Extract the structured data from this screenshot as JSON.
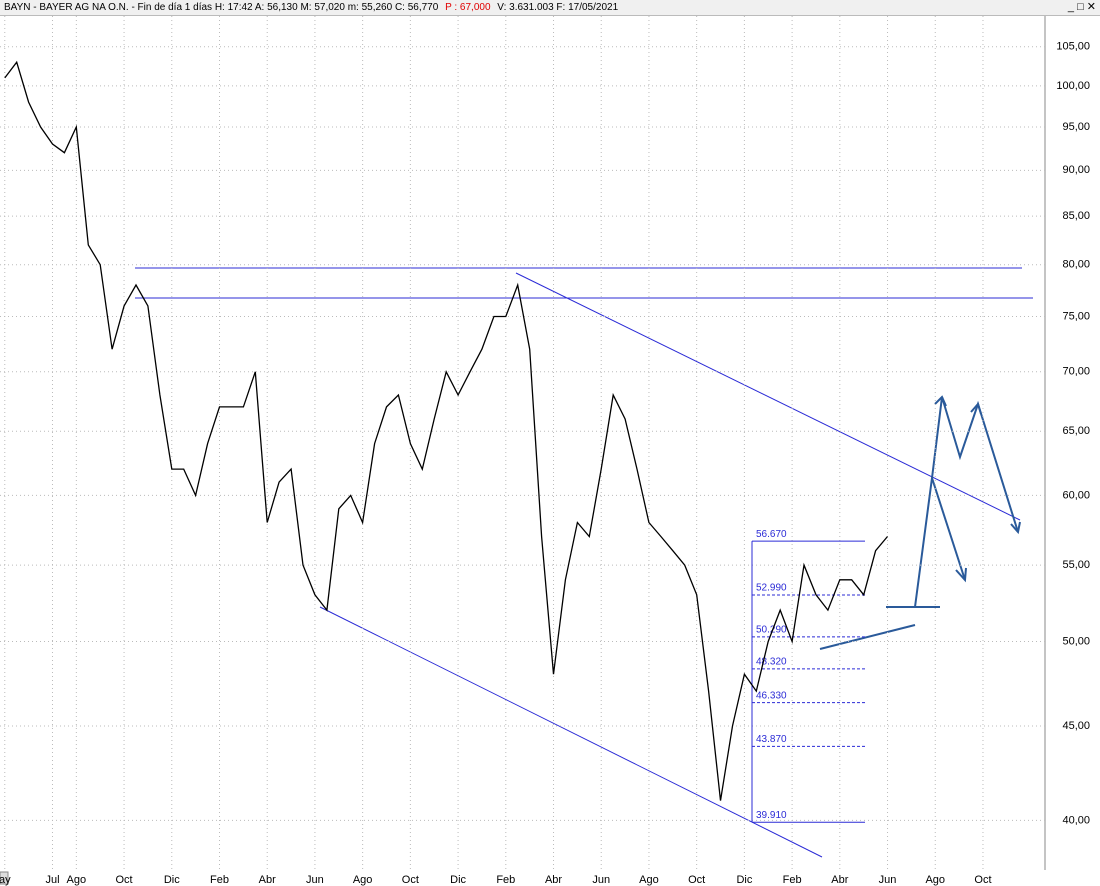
{
  "chart_data": {
    "type": "line",
    "title": [
      "BAYN - BAYER AG NA O.N. - Fin de día 1 días  H: 17:42  A: 56,130  M: 57,020  m: 55,260  C: 56,770",
      "P : 67,000",
      "V: 3.631.003  F: 17/05/2021"
    ],
    "log_scale": true,
    "grid": true,
    "ylim": [
      37.6,
      110.2
    ],
    "yticks": [
      {
        "value": 40,
        "label": "40,00"
      },
      {
        "value": 45,
        "label": "45,00"
      },
      {
        "value": 50,
        "label": "50,00"
      },
      {
        "value": 55,
        "label": "55,00"
      },
      {
        "value": 60,
        "label": "60,00"
      },
      {
        "value": 65,
        "label": "65,00"
      },
      {
        "value": 70,
        "label": "70,00"
      },
      {
        "value": 75,
        "label": "75,00"
      },
      {
        "value": 80,
        "label": "80,00"
      },
      {
        "value": 85,
        "label": "85,00"
      },
      {
        "value": 90,
        "label": "90,00"
      },
      {
        "value": 95,
        "label": "95,00"
      },
      {
        "value": 100,
        "label": "100,00"
      },
      {
        "value": 105,
        "label": "105,00"
      }
    ],
    "xlim": [
      -0.2,
      43.6
    ],
    "xticks": [
      {
        "value": 0,
        "label": "ay"
      },
      {
        "value": 2,
        "label": "Jul"
      },
      {
        "value": 3,
        "label": "Ago"
      },
      {
        "value": 5,
        "label": "Oct"
      },
      {
        "value": 7,
        "label": "Dic"
      },
      {
        "value": 9,
        "label": "Feb"
      },
      {
        "value": 11,
        "label": "Abr"
      },
      {
        "value": 13,
        "label": "Jun"
      },
      {
        "value": 15,
        "label": "Ago"
      },
      {
        "value": 17,
        "label": "Oct"
      },
      {
        "value": 19,
        "label": "Dic"
      },
      {
        "value": 21,
        "label": "Feb"
      },
      {
        "value": 23,
        "label": "Abr"
      },
      {
        "value": 25,
        "label": "Jun"
      },
      {
        "value": 27,
        "label": "Ago"
      },
      {
        "value": 29,
        "label": "Oct"
      },
      {
        "value": 31,
        "label": "Dic"
      },
      {
        "value": 33,
        "label": "Feb"
      },
      {
        "value": 35,
        "label": "Abr"
      },
      {
        "value": 37,
        "label": "Jun"
      },
      {
        "value": 39,
        "label": "Ago"
      },
      {
        "value": 41,
        "label": "Oct"
      }
    ],
    "series": [
      {
        "color": "#000000",
        "values": [
          101,
          103,
          98,
          95,
          93,
          92,
          95,
          82,
          80,
          72,
          76,
          78,
          76,
          68,
          62,
          62,
          60,
          64,
          67,
          67,
          67,
          70,
          58,
          61,
          62,
          55,
          53,
          52,
          59,
          60,
          58,
          64,
          67,
          68,
          64,
          62,
          66,
          70,
          68,
          70,
          72,
          75,
          75,
          78,
          72,
          57,
          48,
          54,
          58,
          57,
          62,
          68,
          66,
          62,
          58,
          57,
          56,
          55,
          53,
          47,
          41,
          45,
          48,
          47,
          50,
          52,
          50,
          55,
          53,
          52,
          54,
          54,
          53,
          56,
          57
        ]
      }
    ],
    "fib_levels": {
      "color": "#2b2bd6",
      "values": [
        56.67,
        52.99,
        50.29,
        48.32,
        46.33,
        43.87,
        39.91
      ],
      "value_labels": [
        "56.670",
        "52.990",
        "50.290",
        "48.320",
        "46.330",
        "43.870",
        "39.910"
      ]
    }
  }
}
